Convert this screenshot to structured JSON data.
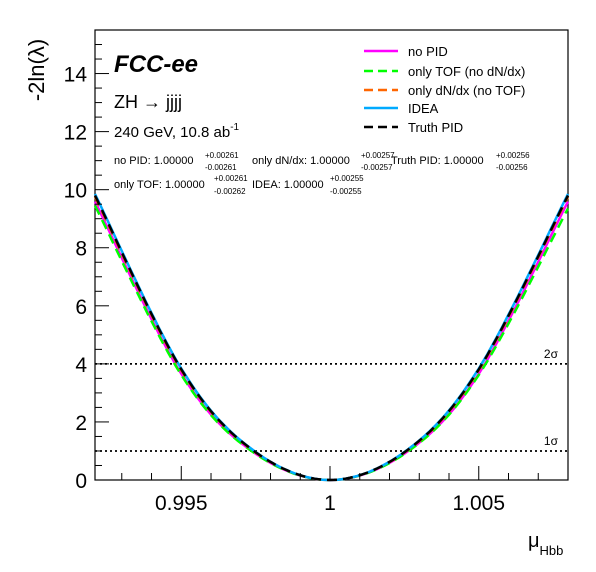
{
  "chart_data": {
    "type": "line",
    "experiment": "FCC-ee",
    "process": "ZH → jjjj",
    "conditions": {
      "prefix": "240 GeV, 10.8 ab",
      "sup": "-1"
    },
    "xlabel": {
      "main": "μ",
      "sub": "Hbb"
    },
    "ylabel": "-2ln(λ)",
    "xlim": [
      0.9921,
      1.008
    ],
    "ylim": [
      0,
      15.5
    ],
    "x_ticks": [
      "0.995",
      "1",
      "1.005"
    ],
    "y_ticks": [
      "0",
      "2",
      "4",
      "6",
      "8",
      "10",
      "12",
      "14"
    ],
    "reference_lines": [
      {
        "y": 1,
        "label": "1σ"
      },
      {
        "y": 4,
        "label": "2σ"
      }
    ],
    "results": [
      {
        "name": "no PID",
        "value": "1.00000",
        "up": "+0.00261",
        "down": "-0.00261"
      },
      {
        "name": "only dN/dx",
        "value": "1.00000",
        "up": "+0.00257",
        "down": "-0.00257"
      },
      {
        "name": "Truth PID",
        "value": "1.00000",
        "up": "+0.00256",
        "down": "-0.00256"
      },
      {
        "name": "only TOF",
        "value": "1.00000",
        "up": "+0.00261",
        "down": "-0.00262"
      },
      {
        "name": "IDEA",
        "value": "1.00000",
        "up": "+0.00255",
        "down": "-0.00255"
      }
    ],
    "series": [
      {
        "name": "no PID",
        "color": "#ff00ff",
        "dash": "solid",
        "x": [
          0.9921,
          0.995,
          0.9974,
          1.0,
          1.0026,
          1.005,
          1.008
        ],
        "y": [
          9.59,
          3.66,
          0.98,
          0.0,
          0.98,
          3.66,
          9.59
        ]
      },
      {
        "name": "only TOF (no dN/dx)",
        "color": "#00ff00",
        "dash": "dashed",
        "x": [
          0.9921,
          0.995,
          0.9974,
          1.0,
          1.0026,
          1.005,
          1.008
        ],
        "y": [
          9.45,
          3.62,
          0.97,
          0.0,
          0.97,
          3.62,
          9.35
        ]
      },
      {
        "name": "only dN/dx (no TOF)",
        "color": "#ff6600",
        "dash": "dashed",
        "x": [
          0.9921,
          0.995,
          0.9974,
          1.0,
          1.0026,
          1.005,
          1.008
        ],
        "y": [
          9.75,
          3.78,
          1.02,
          0.0,
          1.02,
          3.78,
          9.75
        ]
      },
      {
        "name": "IDEA",
        "color": "#00aaff",
        "dash": "solid",
        "x": [
          0.9921,
          0.995,
          0.9974,
          1.0,
          1.0026,
          1.005,
          1.008
        ],
        "y": [
          9.85,
          3.84,
          1.04,
          0.0,
          1.04,
          3.84,
          9.85
        ]
      },
      {
        "name": "Truth PID",
        "color": "#000000",
        "dash": "dashed",
        "x": [
          0.9921,
          0.995,
          0.9974,
          1.0,
          1.0026,
          1.005,
          1.008
        ],
        "y": [
          9.8,
          3.81,
          1.03,
          0.0,
          1.03,
          3.81,
          9.8
        ]
      }
    ],
    "legend_position": "top-right",
    "grid": false
  }
}
